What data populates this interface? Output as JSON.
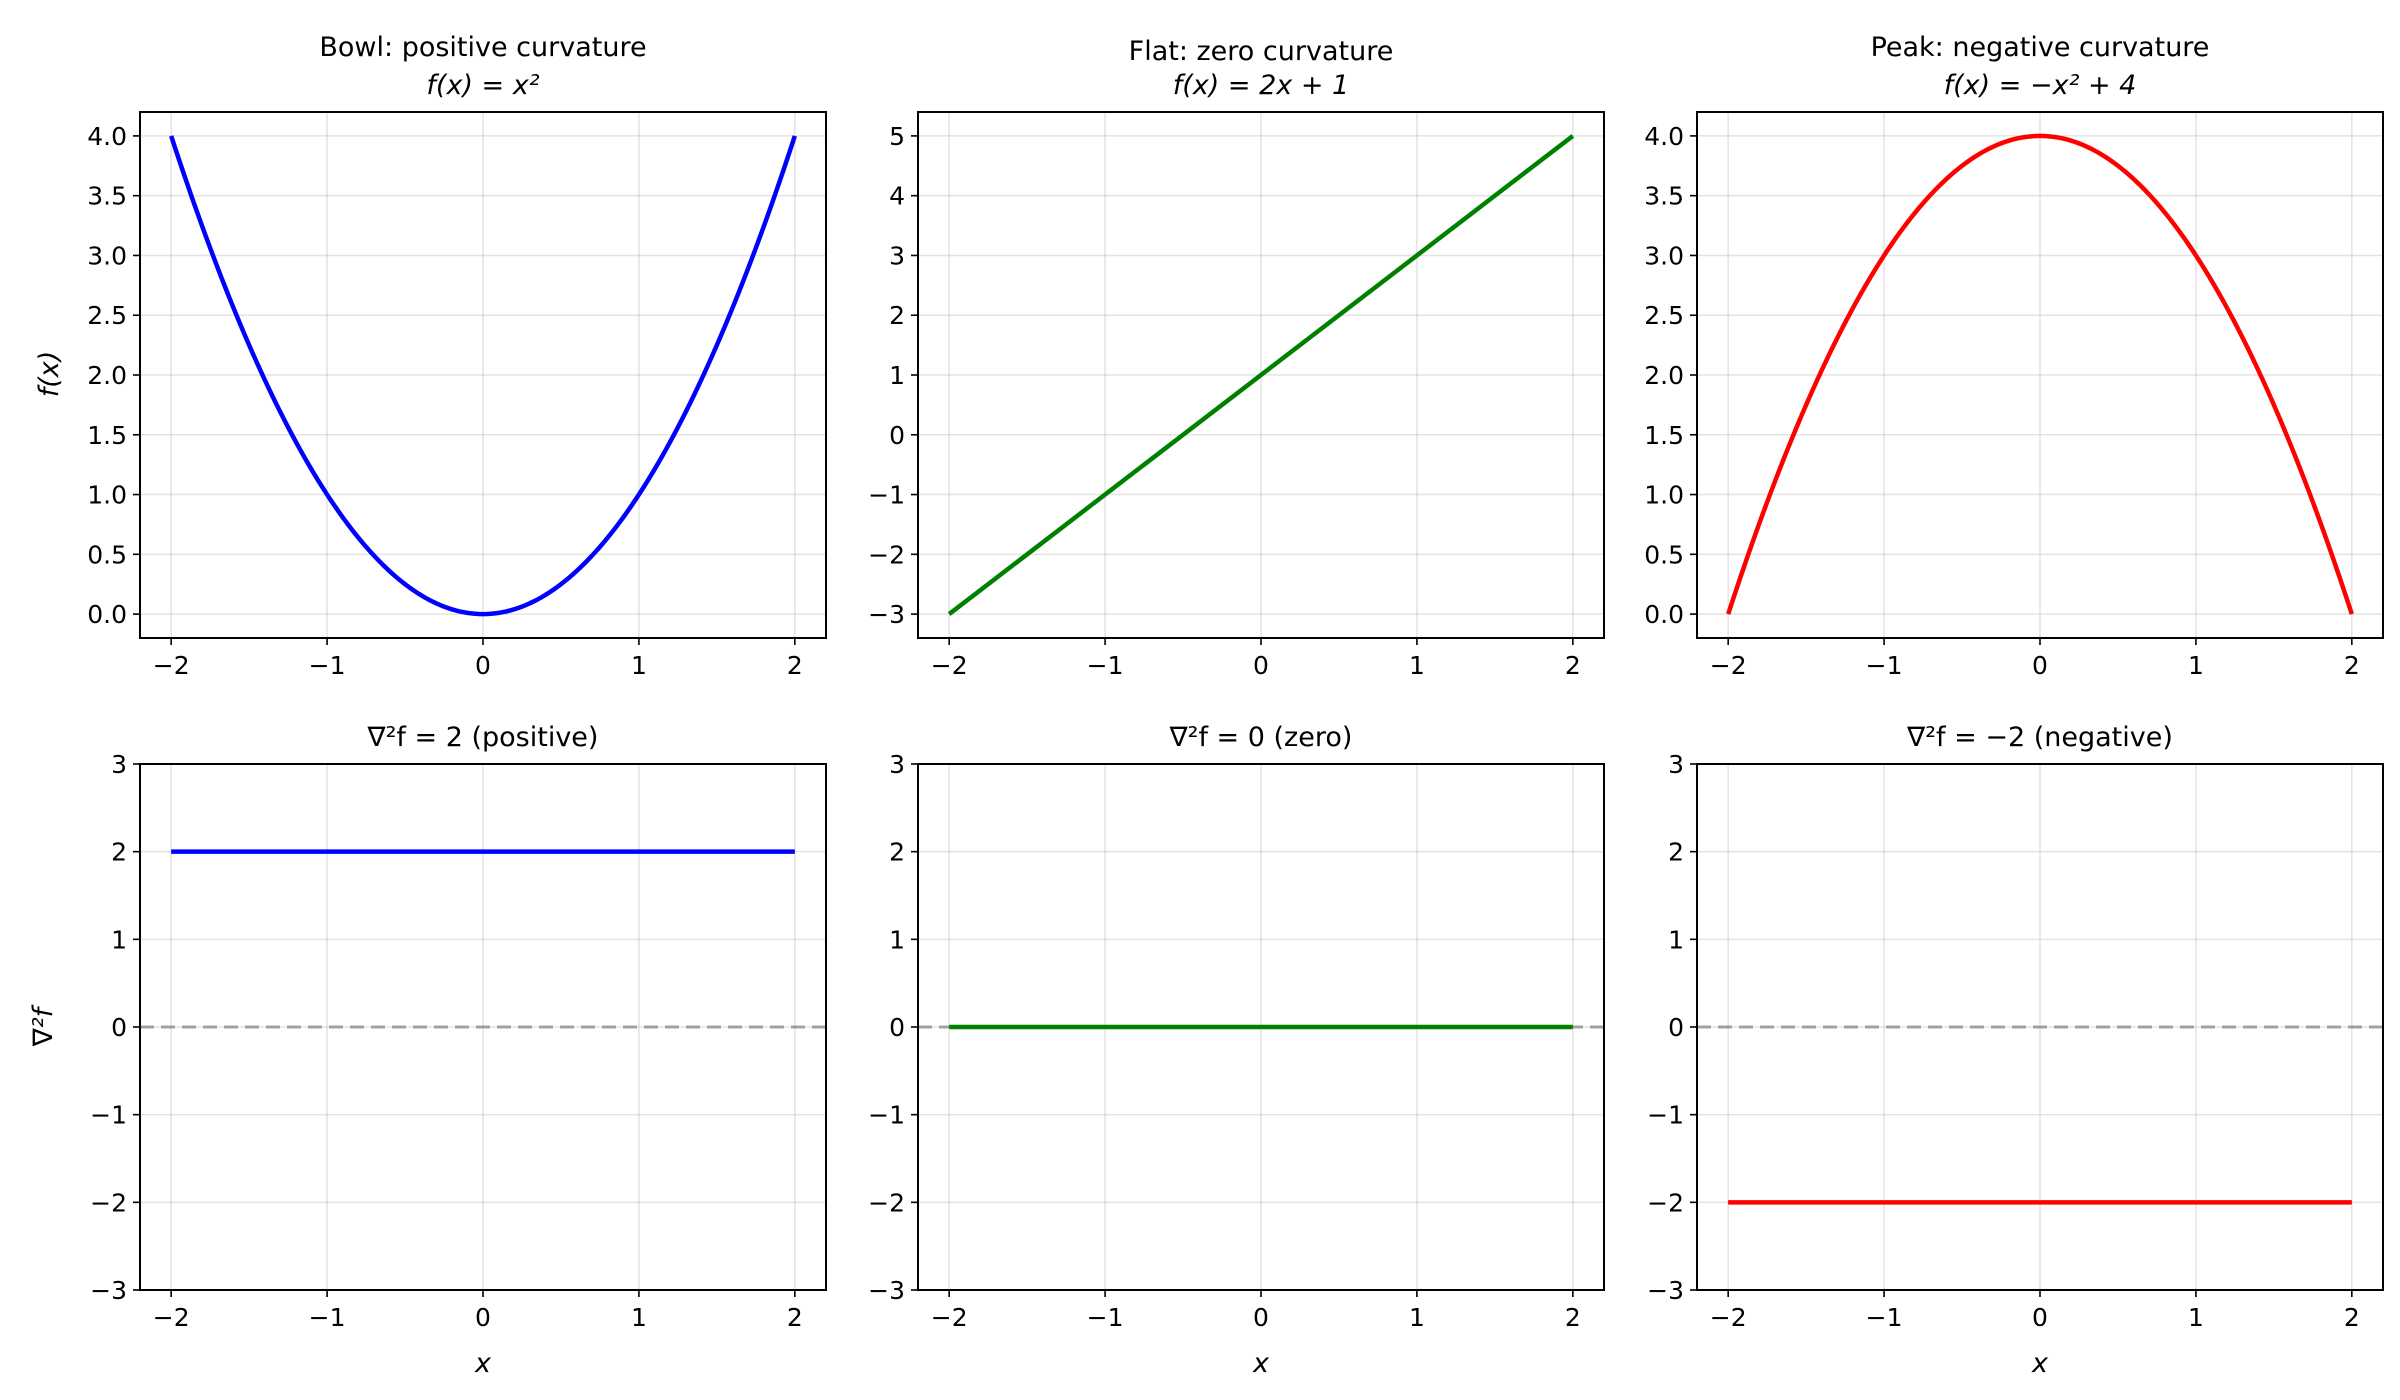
{
  "chart_data": [
    {
      "type": "line",
      "title": "Bowl: positive curvature",
      "subtitle": "f(x) = x²",
      "xlabel": "",
      "ylabel": "f(x)",
      "xlim": [
        -2.2,
        2.2
      ],
      "ylim": [
        -0.2,
        4.2
      ],
      "xticks": [
        -2,
        -1,
        0,
        1,
        2
      ],
      "yticks": [
        0.0,
        0.5,
        1.0,
        1.5,
        2.0,
        2.5,
        3.0,
        3.5,
        4.0
      ],
      "y_decimals": 1,
      "grid": true,
      "zero_line": false,
      "color": "#0000ff",
      "x": [
        -2.0,
        -1.5,
        -1.0,
        -0.5,
        0.0,
        0.5,
        1.0,
        1.5,
        2.0
      ],
      "y": [
        4.0,
        2.25,
        1.0,
        0.25,
        0.0,
        0.25,
        1.0,
        2.25,
        4.0
      ],
      "smooth": true
    },
    {
      "type": "line",
      "title": "Flat: zero curvature",
      "subtitle": "f(x) = 2x + 1",
      "xlabel": "",
      "ylabel": "",
      "xlim": [
        -2.2,
        2.2
      ],
      "ylim": [
        -3.4,
        5.4
      ],
      "xticks": [
        -2,
        -1,
        0,
        1,
        2
      ],
      "yticks": [
        -3,
        -2,
        -1,
        0,
        1,
        2,
        3,
        4,
        5
      ],
      "y_decimals": 0,
      "grid": true,
      "zero_line": false,
      "color": "#008000",
      "x": [
        -2.0,
        2.0
      ],
      "y": [
        -3.0,
        5.0
      ],
      "smooth": false
    },
    {
      "type": "line",
      "title": "Peak: negative curvature",
      "subtitle": "f(x) = −x² + 4",
      "xlabel": "",
      "ylabel": "",
      "xlim": [
        -2.2,
        2.2
      ],
      "ylim": [
        -0.2,
        4.2
      ],
      "xticks": [
        -2,
        -1,
        0,
        1,
        2
      ],
      "yticks": [
        0.0,
        0.5,
        1.0,
        1.5,
        2.0,
        2.5,
        3.0,
        3.5,
        4.0
      ],
      "y_decimals": 1,
      "grid": true,
      "zero_line": false,
      "color": "#ff0000",
      "x": [
        -2.0,
        -1.5,
        -1.0,
        -0.5,
        0.0,
        0.5,
        1.0,
        1.5,
        2.0
      ],
      "y": [
        0.0,
        1.75,
        3.0,
        3.75,
        4.0,
        3.75,
        3.0,
        1.75,
        0.0
      ],
      "smooth": true
    },
    {
      "type": "line",
      "title": "∇²f = 2 (positive)",
      "subtitle": "",
      "xlabel": "x",
      "ylabel": "∇²f",
      "xlim": [
        -2.2,
        2.2
      ],
      "ylim": [
        -3,
        3
      ],
      "xticks": [
        -2,
        -1,
        0,
        1,
        2
      ],
      "yticks": [
        -3,
        -2,
        -1,
        0,
        1,
        2,
        3
      ],
      "y_decimals": 0,
      "grid": true,
      "zero_line": true,
      "color": "#0000ff",
      "x": [
        -2.0,
        2.0
      ],
      "y": [
        2.0,
        2.0
      ],
      "smooth": false
    },
    {
      "type": "line",
      "title": "∇²f = 0 (zero)",
      "subtitle": "",
      "xlabel": "x",
      "ylabel": "",
      "xlim": [
        -2.2,
        2.2
      ],
      "ylim": [
        -3,
        3
      ],
      "xticks": [
        -2,
        -1,
        0,
        1,
        2
      ],
      "yticks": [
        -3,
        -2,
        -1,
        0,
        1,
        2,
        3
      ],
      "y_decimals": 0,
      "grid": true,
      "zero_line": true,
      "color": "#008000",
      "x": [
        -2.0,
        2.0
      ],
      "y": [
        0.0,
        0.0
      ],
      "smooth": false
    },
    {
      "type": "line",
      "title": "∇²f = −2 (negative)",
      "subtitle": "",
      "xlabel": "x",
      "ylabel": "",
      "xlim": [
        -2.2,
        2.2
      ],
      "ylim": [
        -3,
        3
      ],
      "xticks": [
        -2,
        -1,
        0,
        1,
        2
      ],
      "yticks": [
        -3,
        -2,
        -1,
        0,
        1,
        2,
        3
      ],
      "y_decimals": 0,
      "grid": true,
      "zero_line": true,
      "color": "#ff0000",
      "x": [
        -2.0,
        2.0
      ],
      "y": [
        -2.0,
        -2.0
      ],
      "smooth": false
    }
  ]
}
